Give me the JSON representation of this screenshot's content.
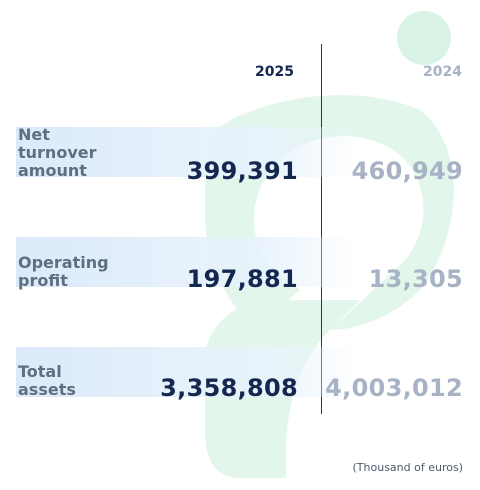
{
  "chart_data": {
    "type": "table",
    "unit_note": "(Thousand of euros)",
    "columns": [
      "2025",
      "2024"
    ],
    "rows": [
      {
        "label": "Net\nturnover\namount",
        "values": [
          "399,391",
          "460,949"
        ]
      },
      {
        "label": "Operating\nprofit",
        "values": [
          "197,881",
          "13,305"
        ]
      },
      {
        "label": "Total\nassets",
        "values": [
          "3,358,808",
          "4,003,012"
        ]
      }
    ]
  },
  "colors": {
    "primary": "#14274e",
    "muted": "#a7b3c4",
    "label": "#5f6e82",
    "band": "#dbeaf9",
    "decor_green": "#d9f4e6"
  }
}
